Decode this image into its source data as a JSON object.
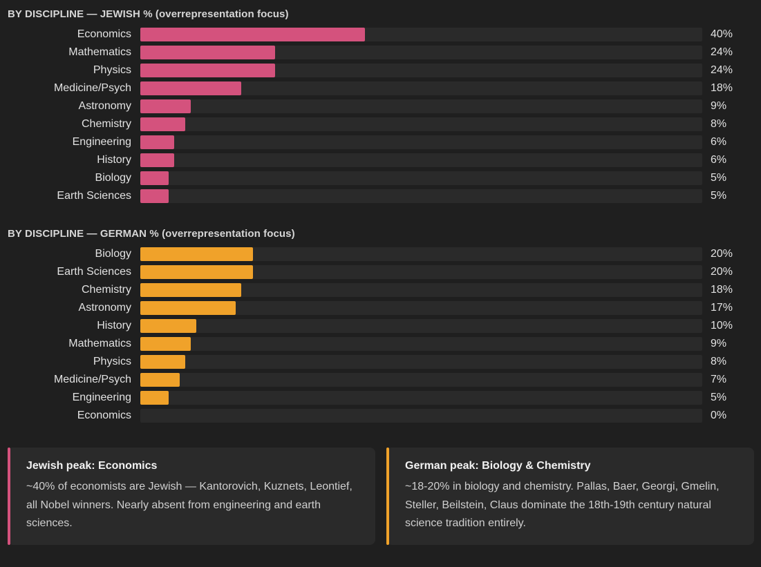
{
  "colors": {
    "jewish": "#d4527d",
    "german": "#f0a22a"
  },
  "chart_data": [
    {
      "type": "bar",
      "orientation": "horizontal",
      "title": "BY DISCIPLINE — JEWISH % (overrepresentation focus)",
      "categories": [
        "Economics",
        "Mathematics",
        "Physics",
        "Medicine/Psych",
        "Astronomy",
        "Chemistry",
        "Engineering",
        "History",
        "Biology",
        "Earth Sciences"
      ],
      "values": [
        40,
        24,
        24,
        18,
        9,
        8,
        6,
        6,
        5,
        5
      ],
      "labels": [
        "40%",
        "24%",
        "24%",
        "18%",
        "9%",
        "8%",
        "6%",
        "6%",
        "5%",
        "5%"
      ],
      "xlim": [
        0,
        100
      ],
      "color": "#d4527d"
    },
    {
      "type": "bar",
      "orientation": "horizontal",
      "title": "BY DISCIPLINE — GERMAN % (overrepresentation focus)",
      "categories": [
        "Biology",
        "Earth Sciences",
        "Chemistry",
        "Astronomy",
        "History",
        "Mathematics",
        "Physics",
        "Medicine/Psych",
        "Engineering",
        "Economics"
      ],
      "values": [
        20,
        20,
        18,
        17,
        10,
        9,
        8,
        7,
        5,
        0
      ],
      "labels": [
        "20%",
        "20%",
        "18%",
        "17%",
        "10%",
        "9%",
        "8%",
        "7%",
        "5%",
        "0%"
      ],
      "xlim": [
        0,
        100
      ],
      "color": "#f0a22a"
    }
  ],
  "cards": [
    {
      "title": "Jewish peak: Economics",
      "body": "~40% of economists are Jewish — Kantorovich, Kuznets, Leontief, all Nobel winners. Nearly absent from engineering and earth sciences."
    },
    {
      "title": "German peak: Biology & Chemistry",
      "body": "~18-20% in biology and chemistry. Pallas, Baer, Georgi, Gmelin, Steller, Beilstein, Claus dominate the 18th-19th century natural science tradition entirely."
    }
  ]
}
